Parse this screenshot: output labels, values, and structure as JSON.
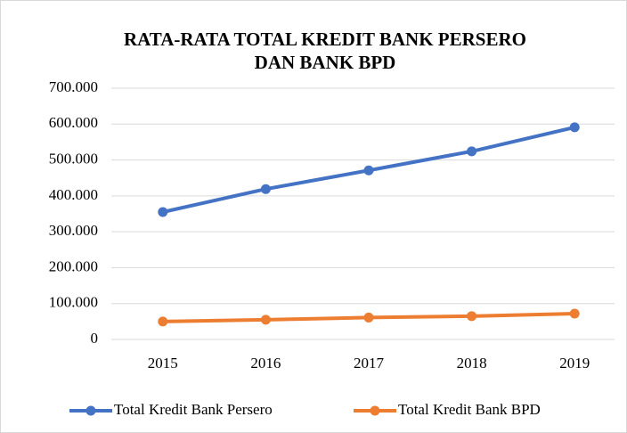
{
  "chart_data": {
    "type": "line",
    "title": [
      "RATA-RATA TOTAL KREDIT BANK PERSERO",
      "DAN BANK BPD"
    ],
    "categories": [
      "2015",
      "2016",
      "2017",
      "2018",
      "2019"
    ],
    "series": [
      {
        "name": "Total Kredit Bank Persero",
        "color": "#4472c4",
        "values": [
          355000,
          419000,
          471000,
          524000,
          591000
        ]
      },
      {
        "name": "Total Kredit Bank BPD",
        "color": "#ed7d31",
        "values": [
          50000,
          55000,
          61000,
          65000,
          72000
        ]
      }
    ],
    "ylim": [
      0,
      700000
    ],
    "yticks": [
      0,
      {
        "value": 100000,
        "label": "100.000"
      },
      {
        "value": 200000,
        "label": "200.000"
      },
      {
        "value": 300000,
        "label": "300.000"
      },
      {
        "value": 400000,
        "label": "400.000"
      },
      {
        "value": 500000,
        "label": "500.000"
      },
      {
        "value": 600000,
        "label": "600.000"
      },
      {
        "value": 700000,
        "label": "700.000"
      }
    ],
    "grid": true,
    "legend": "bottom"
  }
}
